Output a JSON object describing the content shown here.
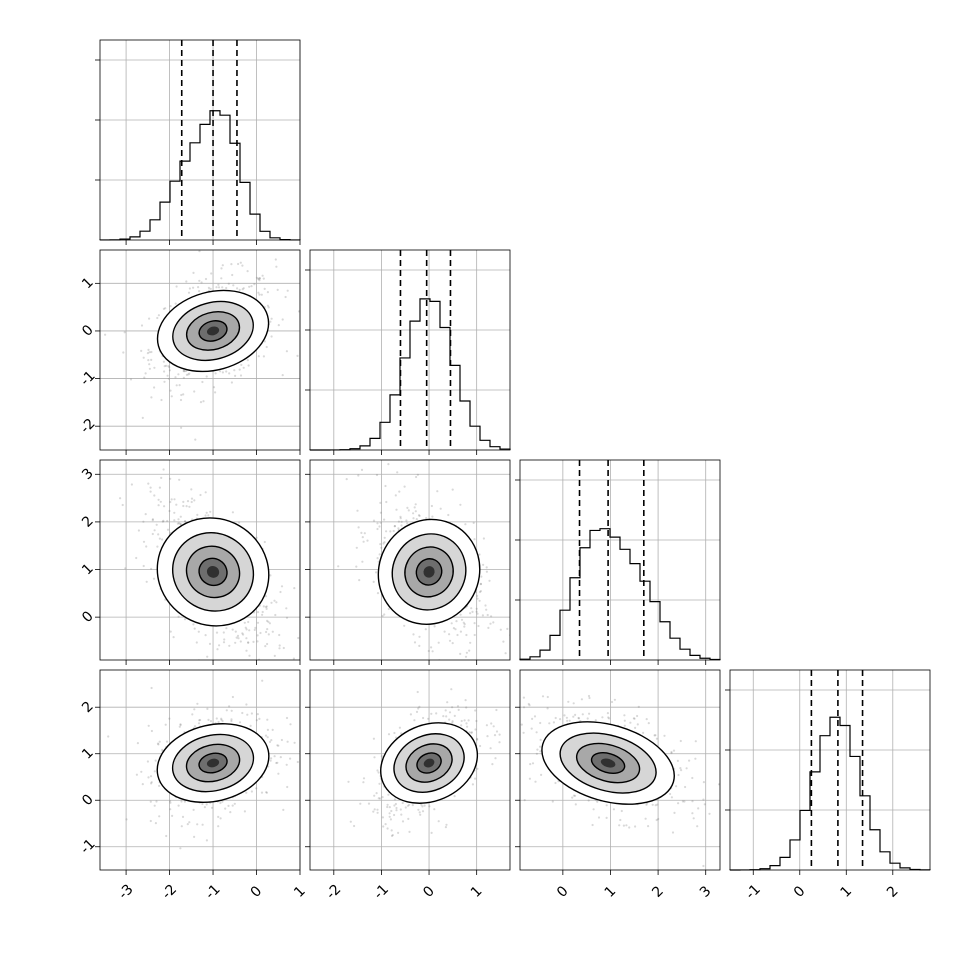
{
  "chart_data": {
    "type": "corner",
    "title": "",
    "n_params": 4,
    "params": [
      {
        "index": 0,
        "mean": -1.0,
        "std": 0.62,
        "range": [
          -3.6,
          1.0
        ],
        "quantiles": [
          -1.72,
          -1.0,
          -0.45
        ],
        "ticks": [
          "-3",
          "-2",
          "-1",
          "0",
          "1"
        ],
        "tick_values": [
          -3,
          -2,
          -1,
          0,
          1
        ]
      },
      {
        "index": 1,
        "mean": 0.0,
        "std": 0.5,
        "range": [
          -2.5,
          1.7
        ],
        "quantiles": [
          -0.6,
          -0.05,
          0.45
        ],
        "ticks": [
          "-2",
          "-1",
          "0",
          "1"
        ],
        "tick_values": [
          -2,
          -1,
          0,
          1
        ]
      },
      {
        "index": 2,
        "mean": 0.95,
        "std": 0.68,
        "range": [
          -0.9,
          3.3
        ],
        "quantiles": [
          0.35,
          0.95,
          1.7
        ],
        "ticks": [
          "0",
          "1",
          "2",
          "3"
        ],
        "tick_values": [
          0,
          1,
          2,
          3
        ]
      },
      {
        "index": 3,
        "mean": 0.8,
        "std": 0.5,
        "range": [
          -1.5,
          2.8
        ],
        "quantiles": [
          0.25,
          0.82,
          1.35
        ],
        "ticks": [
          "-1",
          "0",
          "1",
          "2"
        ],
        "tick_values": [
          -1,
          0,
          1,
          2
        ]
      }
    ],
    "pairs": [
      {
        "x": 0,
        "y": 1,
        "rho": 0.35
      },
      {
        "x": 0,
        "y": 2,
        "rho": -0.55
      },
      {
        "x": 1,
        "y": 2,
        "rho": -0.45
      },
      {
        "x": 0,
        "y": 3,
        "rho": 0.3
      },
      {
        "x": 1,
        "y": 3,
        "rho": 0.5
      },
      {
        "x": 2,
        "y": 3,
        "rho": -0.45
      }
    ],
    "contour_levels": 3,
    "grid": true
  }
}
